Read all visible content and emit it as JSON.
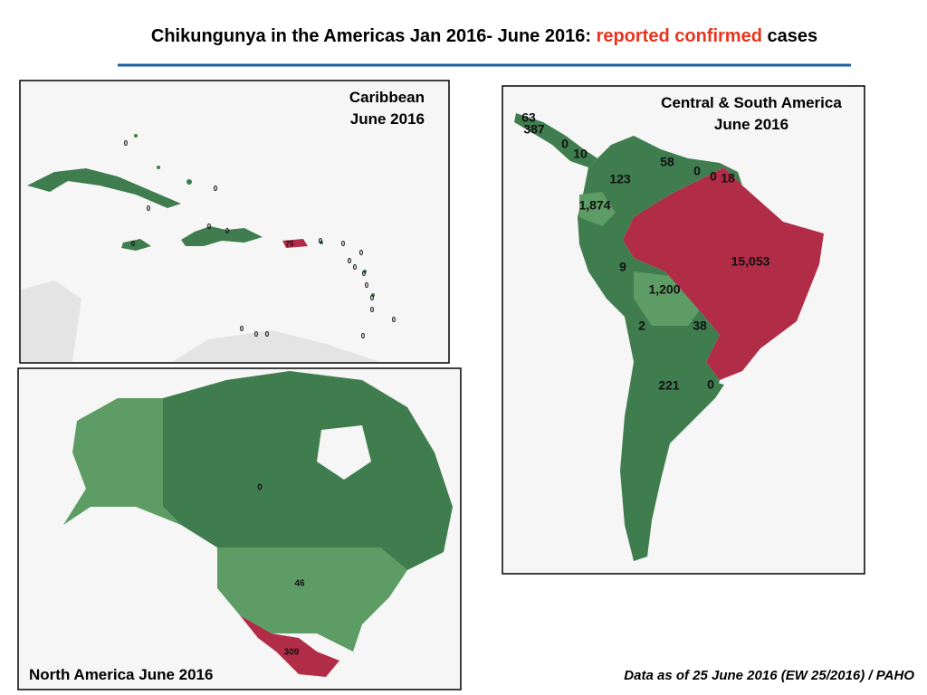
{
  "title": {
    "part1": "Chikungunya in the Americas Jan 2016- June 2016: ",
    "highlight": "reported confirmed",
    "part2": " cases"
  },
  "caribbean": {
    "title_lines": [
      "Caribbean",
      "June 2016"
    ],
    "labels": [
      "0",
      "0",
      "0",
      "0",
      "0",
      "0",
      "75",
      "0",
      "0",
      "0",
      "0",
      "0",
      "0",
      "0",
      "0",
      "0",
      "0",
      "0",
      "0",
      "0",
      "0"
    ]
  },
  "central_south_america": {
    "title_lines": [
      "Central & South America",
      "June 2016"
    ],
    "labels": [
      "63",
      "387",
      "0",
      "10",
      "58",
      "0",
      "0",
      "18",
      "123",
      "1,874",
      "15,053",
      "9",
      "1,200",
      "2",
      "38",
      "221",
      "0"
    ]
  },
  "north_america": {
    "title": "North America June 2016",
    "labels": [
      "0",
      "46",
      "309"
    ]
  },
  "footer": "Data as of 25 June 2016 (EW 25/2016) / PAHO"
}
